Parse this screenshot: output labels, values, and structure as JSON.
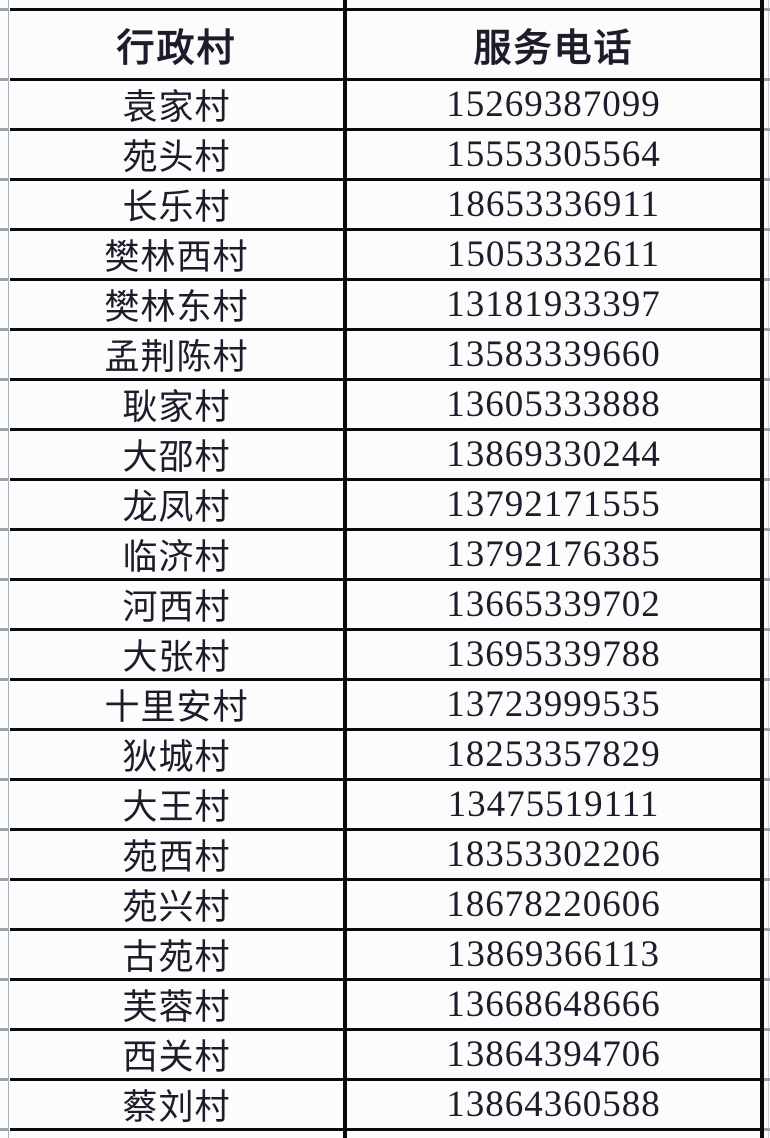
{
  "table": {
    "columns": [
      {
        "key": "village",
        "label": "行政村"
      },
      {
        "key": "phone",
        "label": "服务电话"
      }
    ],
    "rows": [
      {
        "village": "袁家村",
        "phone": "15269387099"
      },
      {
        "village": "苑头村",
        "phone": "15553305564"
      },
      {
        "village": "长乐村",
        "phone": "18653336911"
      },
      {
        "village": "樊林西村",
        "phone": "15053332611"
      },
      {
        "village": "樊林东村",
        "phone": "13181933397"
      },
      {
        "village": "孟荆陈村",
        "phone": "13583339660"
      },
      {
        "village": "耿家村",
        "phone": "13605333888"
      },
      {
        "village": "大邵村",
        "phone": "13869330244"
      },
      {
        "village": "龙凤村",
        "phone": "13792171555"
      },
      {
        "village": "临济村",
        "phone": "13792176385"
      },
      {
        "village": "河西村",
        "phone": "13665339702"
      },
      {
        "village": "大张村",
        "phone": "13695339788"
      },
      {
        "village": "十里安村",
        "phone": "13723999535"
      },
      {
        "village": "狄城村",
        "phone": "18253357829"
      },
      {
        "village": "大王村",
        "phone": "13475519111"
      },
      {
        "village": "苑西村",
        "phone": "18353302206"
      },
      {
        "village": "苑兴村",
        "phone": "18678220606"
      },
      {
        "village": "古苑村",
        "phone": "13869366113"
      },
      {
        "village": "芙蓉村",
        "phone": "13668648666"
      },
      {
        "village": "西关村",
        "phone": "13864394706"
      },
      {
        "village": "蔡刘村",
        "phone": "13864360588"
      }
    ]
  },
  "colors": {
    "table_border": "#0b0b0f",
    "text": "#1c1c2a",
    "background": "#fbfbfc",
    "gridline": "#a9b2ba"
  }
}
